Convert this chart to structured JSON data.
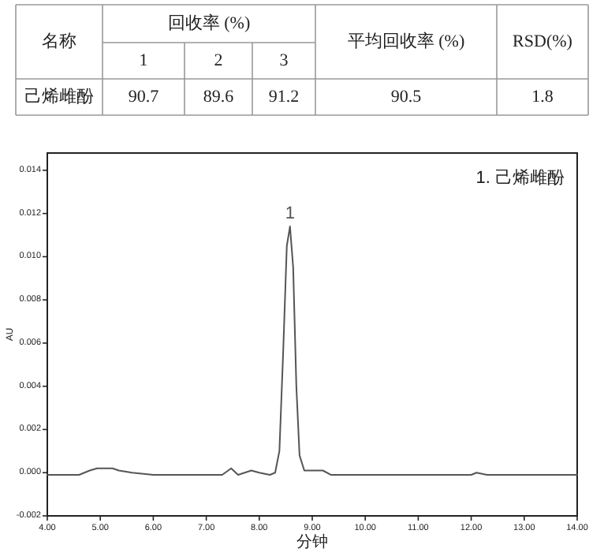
{
  "chart_data": [
    {
      "type": "other",
      "annotations": [
        "名称",
        "回收率 (%)",
        "1",
        "2",
        "3",
        "平均回收率 (%)",
        "RSD(%)",
        "己烯雌酚",
        "90.7",
        "89.6",
        "91.2",
        "90.5",
        "1.8"
      ]
    },
    {
      "type": "line",
      "xlabel": "分钟",
      "ylabel": "AU",
      "xlim": [
        4,
        14
      ],
      "ylim": [
        -0.002,
        0.0148
      ],
      "xticks": [
        {
          "value": 4,
          "label": "4.00"
        },
        {
          "value": 5,
          "label": "5.00"
        },
        {
          "value": 6,
          "label": "6.00"
        },
        {
          "value": 7,
          "label": "7.00"
        },
        {
          "value": 8,
          "label": "8.00"
        },
        {
          "value": 9,
          "label": "9.00"
        },
        {
          "value": 10,
          "label": "10.00"
        },
        {
          "value": 11,
          "label": "11.00"
        },
        {
          "value": 12,
          "label": "12.00"
        },
        {
          "value": 13,
          "label": "13.00"
        },
        {
          "value": 14,
          "label": "14.00"
        }
      ],
      "yticks": [
        {
          "value": -0.002,
          "label": "-0.002"
        },
        {
          "value": 0,
          "label": "0.000"
        },
        {
          "value": 0.002,
          "label": "0.002"
        },
        {
          "value": 0.004,
          "label": "0.004"
        },
        {
          "value": 0.006,
          "label": "0.006"
        },
        {
          "value": 0.008,
          "label": "0.008"
        },
        {
          "value": 0.01,
          "label": "0.010"
        },
        {
          "value": 0.012,
          "label": "0.012"
        },
        {
          "value": 0.014,
          "label": "0.014"
        }
      ],
      "marker": "none",
      "line_style": "solid",
      "annotations": [
        "1. 己烯雌酚",
        {
          "text": "1",
          "x": 8.58,
          "y": 0.0114
        }
      ],
      "series": [
        {
          "color": "#555555",
          "x": [
            4.0,
            4.3,
            4.6,
            4.8,
            4.94,
            5.1,
            5.23,
            5.35,
            5.6,
            6.0,
            6.5,
            7.0,
            7.3,
            7.47,
            7.6,
            7.85,
            8.0,
            8.2,
            8.3,
            8.38,
            8.45,
            8.52,
            8.58,
            8.64,
            8.7,
            8.76,
            8.85,
            9.0,
            9.2,
            9.35,
            9.6,
            10,
            11,
            12,
            12.1,
            12.3,
            13,
            14
          ],
          "values": [
            -0.0001,
            -0.0001,
            -0.0001,
            0.0001,
            0.0002,
            0.0002,
            0.0002,
            0.0001,
            0,
            -0.0001,
            -0.0001,
            -0.0001,
            -0.0001,
            0.0002,
            -0.0001,
            0.0001,
            0,
            -0.0001,
            0,
            0.001,
            0.0055,
            0.0105,
            0.0114,
            0.0095,
            0.004,
            0.0008,
            0.0001,
            0.0001,
            0.0001,
            -0.0001,
            -0.0001,
            -0.0001,
            -0.0001,
            -0.0001,
            0,
            -0.0001,
            -0.0001,
            -0.0001
          ]
        }
      ]
    }
  ]
}
